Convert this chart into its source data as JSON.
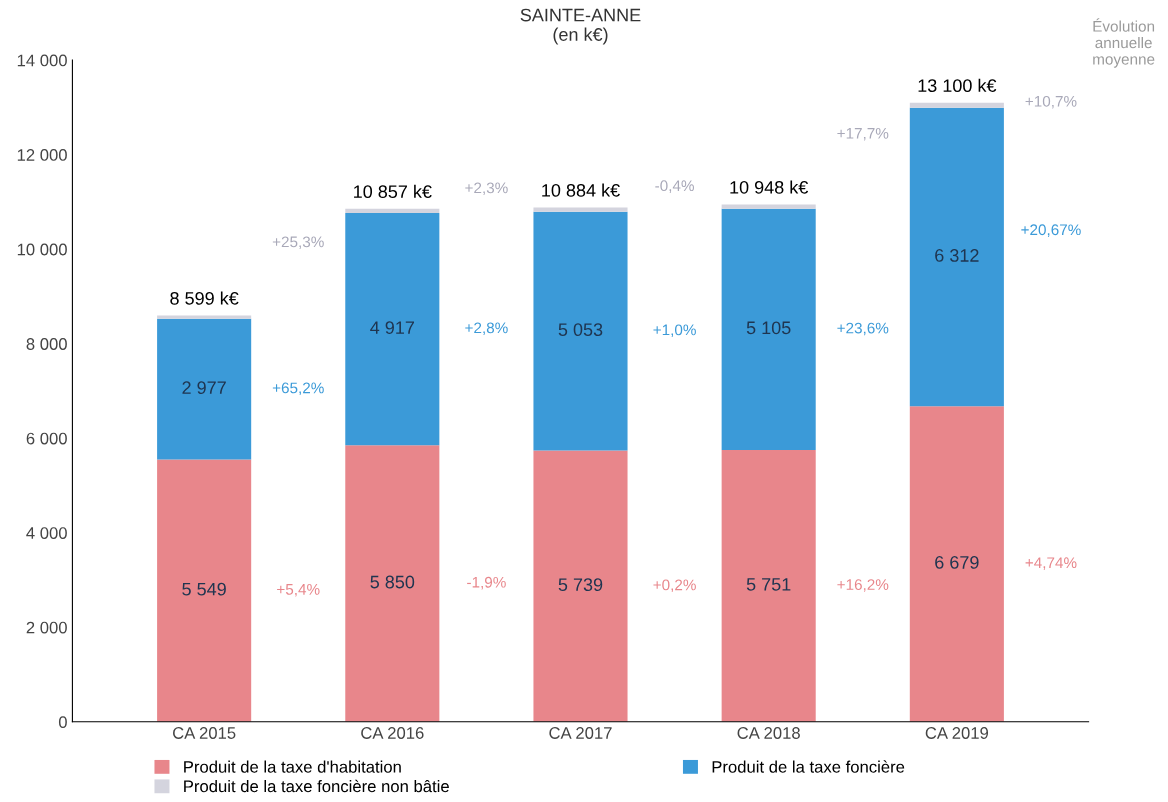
{
  "chart_data": {
    "type": "bar",
    "title": "SAINTE-ANNE",
    "subtitle": "(en k€)",
    "categories": [
      "CA 2015",
      "CA 2016",
      "CA 2017",
      "CA 2018",
      "CA 2019"
    ],
    "stacked": true,
    "series": [
      {
        "name": "Produit de la taxe d'habitation",
        "color": "#e8868b",
        "values": [
          5549,
          5850,
          5739,
          5751,
          6679
        ],
        "value_labels": [
          "5 549",
          "5 850",
          "5 739",
          "5 751",
          "6 679"
        ]
      },
      {
        "name": "Produit de la taxe foncière",
        "color": "#3b9ad8",
        "values": [
          2977,
          4917,
          5053,
          5105,
          6312
        ],
        "value_labels": [
          "2 977",
          "4 917",
          "5 053",
          "5 105",
          "6 312"
        ]
      },
      {
        "name": "Produit de la taxe foncière non bâtie",
        "color": "#d4d4de",
        "values": [
          73,
          90,
          92,
          92,
          109
        ]
      }
    ],
    "totals": [
      "8 599 k€",
      "10 857 k€",
      "10 884 k€",
      "10 948 k€",
      "13 100 k€"
    ],
    "ylim": [
      0,
      14000
    ],
    "yticks": [
      0,
      {
        "value": 2000,
        "label": "2 000"
      },
      {
        "value": 4000,
        "label": "4 000"
      },
      {
        "value": 6000,
        "label": "6 000"
      },
      {
        "value": 8000,
        "label": "8 000"
      },
      {
        "value": 10000,
        "label": "10 000"
      },
      {
        "value": 12000,
        "label": "12 000"
      },
      {
        "value": 14000,
        "label": "14 000"
      }
    ],
    "grid": false,
    "legend": "bottom",
    "annotations": [
      "Évolution annuelle moyenne",
      "+25,3%",
      "+65,2%",
      "+5,4%",
      "+2,3%",
      "+2,8%",
      "-1,9%",
      "-0,4%",
      "+1,0%",
      "+0,2%",
      "+17,7%",
      "+23,6%",
      "+16,2%",
      "+10,7%",
      "+20,67%",
      "+4,74%"
    ]
  }
}
